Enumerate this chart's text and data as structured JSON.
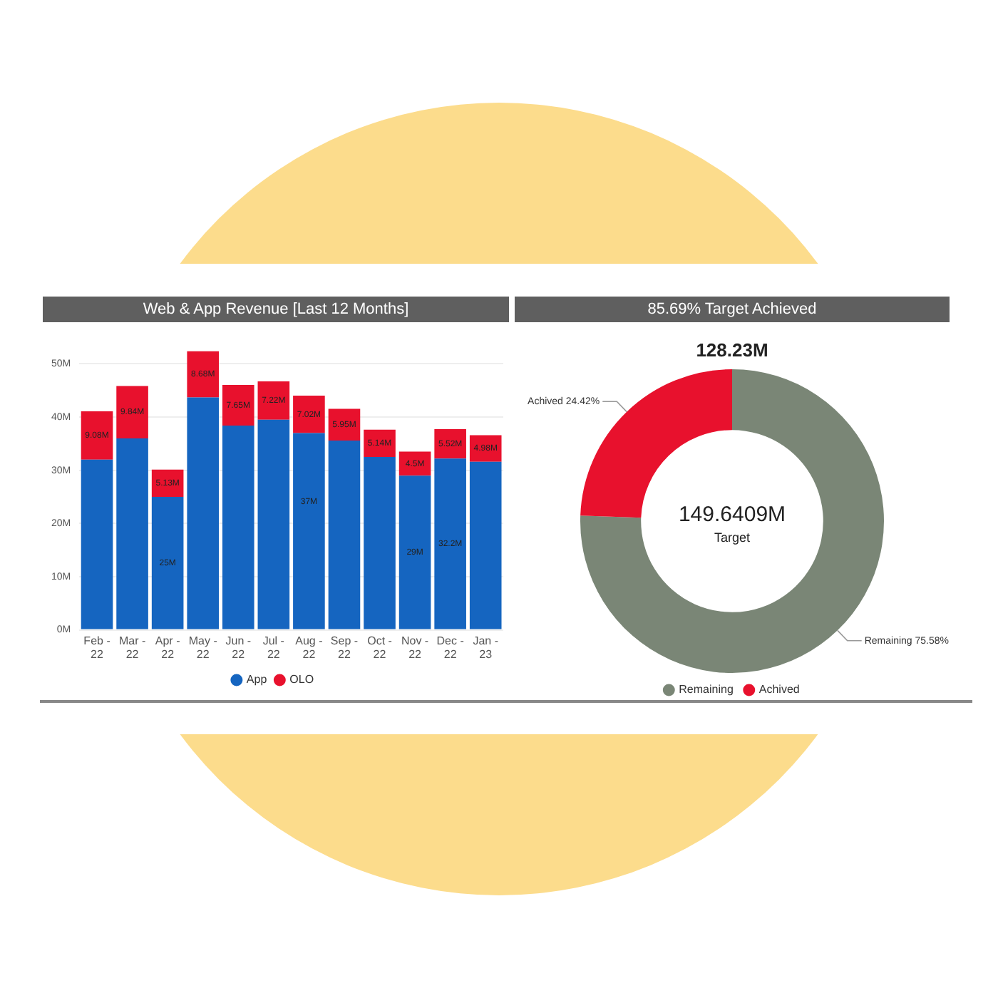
{
  "chart_data": [
    {
      "type": "bar",
      "title": "Web & App Revenue [Last 12 Months]",
      "stacked": true,
      "categories": [
        "Feb - 22",
        "Mar - 22",
        "Apr - 22",
        "May - 22",
        "Jun - 22",
        "Jul - 22",
        "Aug - 22",
        "Sep - 22",
        "Oct - 22",
        "Nov - 22",
        "Dec - 22",
        "Jan - 23"
      ],
      "series": [
        {
          "name": "App",
          "color": "#1565c0",
          "values": [
            32.0,
            36.0,
            25,
            43.7,
            38.4,
            39.5,
            37,
            35.6,
            32.5,
            29,
            32.2,
            31.6
          ],
          "value_labels": [
            null,
            null,
            "25M",
            null,
            null,
            null,
            "37M",
            null,
            null,
            "29M",
            "32.2M",
            null
          ]
        },
        {
          "name": "OLO",
          "color": "#e8112d",
          "values": [
            9.08,
            9.84,
            5.13,
            8.68,
            7.65,
            7.22,
            7.02,
            5.95,
            5.14,
            4.5,
            5.52,
            4.98
          ],
          "value_labels": [
            "9.08M",
            "9.84M",
            "5.13M",
            "8.68M",
            "7.65M",
            "7.22M",
            "7.02M",
            "5.95M",
            "5.14M",
            "4.5M",
            "5.52M",
            "4.98M"
          ]
        }
      ],
      "ylim": [
        0,
        53
      ],
      "yticks": [
        {
          "value": 0,
          "label": "0M"
        },
        {
          "value": 10,
          "label": "10M"
        },
        {
          "value": 20,
          "label": "20M"
        },
        {
          "value": 30,
          "label": "30M"
        },
        {
          "value": 40,
          "label": "40M"
        },
        {
          "value": 50,
          "label": "50M"
        }
      ],
      "grid": "y",
      "legend": "bottom"
    },
    {
      "type": "donut",
      "title": "85.69%  Target Achieved",
      "subtitle": "128.23M",
      "categories": [
        "Remaining",
        "Achived"
      ],
      "values": [
        75.58,
        24.42
      ],
      "colors": [
        "#7a8676",
        "#e8112d"
      ],
      "value_labels": [
        "Remaining 75.58%",
        "Achived 24.42%"
      ],
      "annotations": [
        "149.6409M",
        "Target"
      ],
      "legend": "bottom"
    }
  ]
}
